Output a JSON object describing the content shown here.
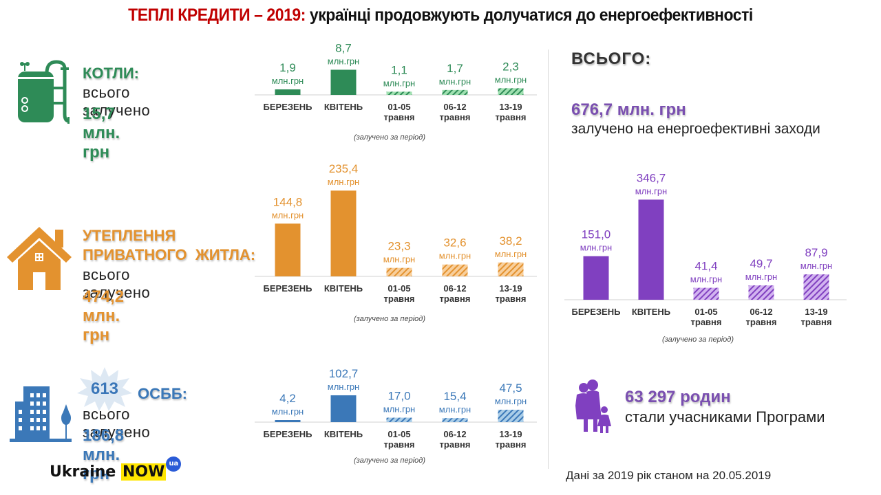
{
  "title": {
    "red": "ТЕПЛІ КРЕДИТИ – 2019:",
    "black": " українці продовжують долучатися до енергоефективності"
  },
  "colors": {
    "green": "#2e8b57",
    "green_light": "#9fe0b0",
    "orange": "#e3922f",
    "orange_light": "#f8cf9c",
    "blue": "#3b78b8",
    "blue_light": "#a9cde8",
    "purple": "#8040c0",
    "purple_light": "#d2b3f0"
  },
  "period_note": "(залучено  за період)",
  "unit": "млн.грн",
  "sections": [
    {
      "key": "boilers",
      "head": "КОТЛИ:",
      "sub": "всього залучено",
      "amount": "15,7 млн. грн",
      "icon": "boiler-icon"
    },
    {
      "key": "insulation",
      "head1": "УТЕПЛЕННЯ",
      "head2": "ПРИВАТНОГО  ЖИТЛА:",
      "sub": "всього залучено",
      "amount": "474,2 млн. грн",
      "icon": "house-icon"
    },
    {
      "key": "osbb",
      "badge": "613",
      "head": "ОСББ:",
      "sub": "всього залучено",
      "amount": "186,8 млн. грн",
      "icon": "building-icon"
    }
  ],
  "total": {
    "title": "ВСЬОГО:",
    "amount": "676,7 млн. грн",
    "sub": "залучено на енергоефективні заходи"
  },
  "families": {
    "amount": "63 297 родин",
    "sub": "стали учасниками Програми",
    "icon": "family-icon"
  },
  "footer": "Дані за 2019 рік станом на 20.05.2019",
  "logo": {
    "text": "Ukraine ",
    "now": "NOW",
    "ua": "ua"
  },
  "chart_data": [
    {
      "type": "bar",
      "title": "КОТЛИ",
      "categories": [
        "БЕРЕЗЕНЬ",
        "КВІТЕНЬ",
        "01-05|травня",
        "06-12|травня",
        "13-19|травня"
      ],
      "values": [
        1.9,
        8.7,
        1.1,
        1.7,
        2.3
      ],
      "labels": [
        "1,9",
        "8,7",
        "1,1",
        "1,7",
        "2,3"
      ],
      "hatched": [
        false,
        false,
        true,
        true,
        true
      ],
      "unit": "млн.грн",
      "color": "green"
    },
    {
      "type": "bar",
      "title": "УТЕПЛЕННЯ ПРИВАТНОГО ЖИТЛА",
      "categories": [
        "БЕРЕЗЕНЬ",
        "КВІТЕНЬ",
        "01-05|травня",
        "06-12|травня",
        "13-19|травня"
      ],
      "values": [
        144.8,
        235.4,
        23.3,
        32.6,
        38.2
      ],
      "labels": [
        "144,8",
        "235,4",
        "23,3",
        "32,6",
        "38,2"
      ],
      "hatched": [
        false,
        false,
        true,
        true,
        true
      ],
      "unit": "млн.грн",
      "color": "orange"
    },
    {
      "type": "bar",
      "title": "ОСББ",
      "categories": [
        "БЕРЕЗЕНЬ",
        "КВІТЕНЬ",
        "01-05|травня",
        "06-12|травня",
        "13-19|травня"
      ],
      "values": [
        4.2,
        102.7,
        17.0,
        15.4,
        47.5
      ],
      "labels": [
        "4,2",
        "102,7",
        "17,0",
        "15,4",
        "47,5"
      ],
      "hatched": [
        false,
        false,
        true,
        true,
        true
      ],
      "unit": "млн.грн",
      "color": "blue"
    },
    {
      "type": "bar",
      "title": "ВСЬОГО",
      "categories": [
        "БЕРЕЗЕНЬ",
        "КВІТЕНЬ",
        "01-05|травня",
        "06-12|травня",
        "13-19|травня"
      ],
      "values": [
        151.0,
        346.7,
        41.4,
        49.7,
        87.9
      ],
      "labels": [
        "151,0",
        "346,7",
        "41,4",
        "49,7",
        "87,9"
      ],
      "hatched": [
        false,
        false,
        true,
        true,
        true
      ],
      "unit": "млн.грн",
      "color": "purple"
    }
  ]
}
